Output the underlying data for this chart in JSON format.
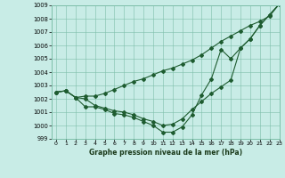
{
  "title": "Graphe pression niveau de la mer (hPa)",
  "background_color": "#c8ece6",
  "grid_color": "#7dbfaa",
  "line_color": "#1e5c30",
  "xlim": [
    -0.5,
    23
  ],
  "ylim": [
    999,
    1009
  ],
  "xticks": [
    0,
    1,
    2,
    3,
    4,
    5,
    6,
    7,
    8,
    9,
    10,
    11,
    12,
    13,
    14,
    15,
    16,
    17,
    18,
    19,
    20,
    21,
    22,
    23
  ],
  "yticks": [
    999,
    1000,
    1001,
    1002,
    1003,
    1004,
    1005,
    1006,
    1007,
    1008,
    1009
  ],
  "line1_y": [
    1002.5,
    1002.6,
    1002.1,
    1002.2,
    1002.2,
    1002.4,
    1002.7,
    1003.0,
    1003.3,
    1003.5,
    1003.8,
    1004.1,
    1004.3,
    1004.6,
    1004.9,
    1005.3,
    1005.8,
    1006.3,
    1006.7,
    1007.1,
    1007.5,
    1007.8,
    1008.2,
    1009.1
  ],
  "line2_y": [
    1002.5,
    1002.6,
    1002.1,
    1001.4,
    1001.4,
    1001.2,
    1000.9,
    1000.8,
    1000.6,
    1000.3,
    1000.0,
    999.5,
    999.5,
    999.9,
    1000.8,
    1002.3,
    1003.5,
    1005.7,
    1005.0,
    1005.8,
    1006.5,
    1007.5,
    1008.3,
    1009.1
  ],
  "line3_y": [
    1002.5,
    1002.6,
    1002.1,
    1002.0,
    1001.5,
    1001.3,
    1001.1,
    1001.0,
    1000.8,
    1000.5,
    1000.3,
    1000.0,
    1000.1,
    1000.5,
    1001.2,
    1001.8,
    1002.4,
    1002.9,
    1003.4,
    1005.8,
    1006.5,
    1007.5,
    1008.3,
    1009.1
  ]
}
